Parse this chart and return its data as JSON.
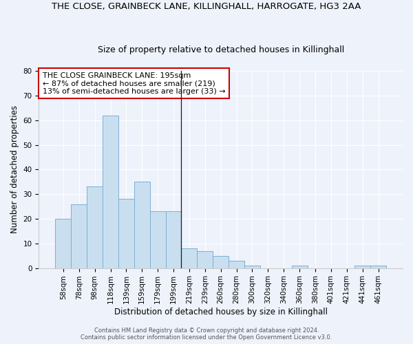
{
  "title": "THE CLOSE, GRAINBECK LANE, KILLINGHALL, HARROGATE, HG3 2AA",
  "subtitle": "Size of property relative to detached houses in Killinghall",
  "xlabel": "Distribution of detached houses by size in Killinghall",
  "ylabel": "Number of detached properties",
  "categories": [
    "58sqm",
    "78sqm",
    "98sqm",
    "118sqm",
    "139sqm",
    "159sqm",
    "179sqm",
    "199sqm",
    "219sqm",
    "239sqm",
    "260sqm",
    "280sqm",
    "300sqm",
    "320sqm",
    "340sqm",
    "360sqm",
    "380sqm",
    "401sqm",
    "421sqm",
    "441sqm",
    "461sqm"
  ],
  "values": [
    20,
    26,
    33,
    62,
    28,
    35,
    23,
    23,
    8,
    7,
    5,
    3,
    1,
    0,
    0,
    1,
    0,
    0,
    0,
    1,
    1
  ],
  "bar_color": "#c9dff0",
  "bar_edge_color": "#7aafd4",
  "vline_x": 7.5,
  "vline_color": "#1a1a1a",
  "annotation_line1": "THE CLOSE GRAINBECK LANE: 195sqm",
  "annotation_line2": "← 87% of detached houses are smaller (219)",
  "annotation_line3": "13% of semi-detached houses are larger (33) →",
  "annotation_box_color": "#ffffff",
  "annotation_box_edge_color": "#cc0000",
  "ylim": [
    0,
    80
  ],
  "yticks": [
    0,
    10,
    20,
    30,
    40,
    50,
    60,
    70,
    80
  ],
  "background_color": "#eef2fb",
  "grid_color": "#ffffff",
  "footer_line1": "Contains HM Land Registry data © Crown copyright and database right 2024.",
  "footer_line2": "Contains public sector information licensed under the Open Government Licence v3.0.",
  "title_fontsize": 9.5,
  "subtitle_fontsize": 9,
  "xlabel_fontsize": 8.5,
  "ylabel_fontsize": 8.5,
  "annotation_fontsize": 8,
  "tick_fontsize": 7.5,
  "footer_fontsize": 6
}
